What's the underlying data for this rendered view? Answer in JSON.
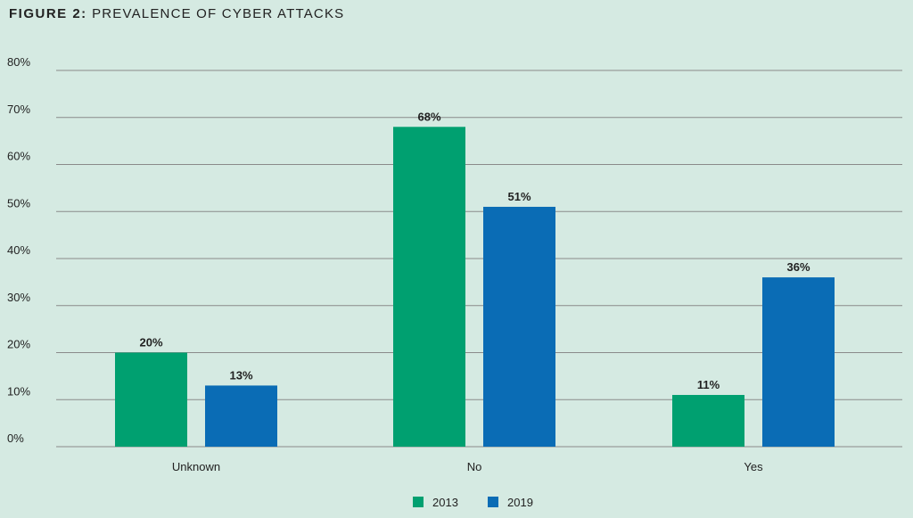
{
  "figure": {
    "label": "FIGURE 2:",
    "title": "PREVALENCE OF CYBER ATTACKS"
  },
  "colors": {
    "background": "#d5eae2",
    "gridline": "#8a8a8a",
    "series_2013": "#00a070",
    "series_2019": "#0a6cb5"
  },
  "chart_data": {
    "type": "bar",
    "title": "PREVALENCE OF CYBER ATTACKS",
    "categories": [
      "Unknown",
      "No",
      "Yes"
    ],
    "series": [
      {
        "name": "2013",
        "values": [
          20,
          68,
          11
        ],
        "labels": [
          "20%",
          "68%",
          "11%"
        ]
      },
      {
        "name": "2019",
        "values": [
          13,
          51,
          36
        ],
        "labels": [
          "13%",
          "51%",
          "36%"
        ]
      }
    ],
    "ylim": [
      0,
      80
    ],
    "yticks": [
      0,
      10,
      20,
      30,
      40,
      50,
      60,
      70,
      80
    ],
    "ytick_labels": [
      "0%",
      "10%",
      "20%",
      "30%",
      "40%",
      "50%",
      "60%",
      "70%",
      "80%"
    ],
    "xlabel": "",
    "ylabel": "",
    "grid": true,
    "legend": "bottom-center"
  }
}
